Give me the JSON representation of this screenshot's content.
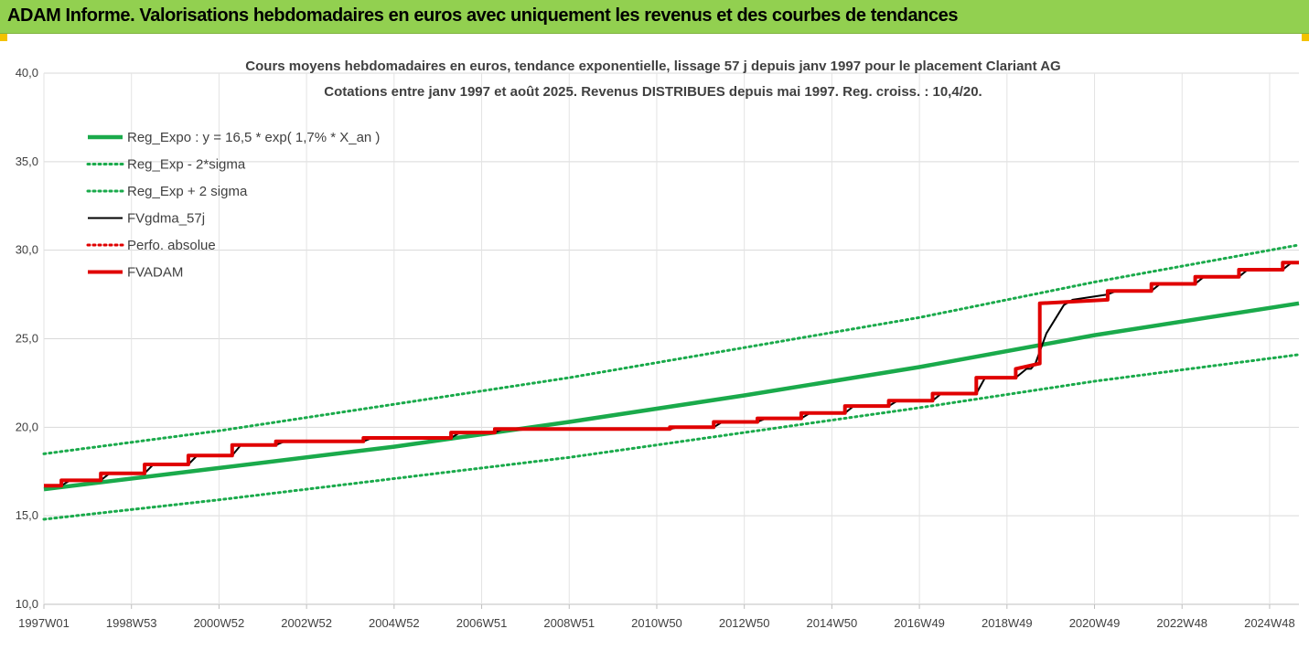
{
  "banner": {
    "title": "ADAM Informe. Valorisations hebdomadaires en euros avec uniquement les revenus et des courbes de tendances",
    "background": "#92d050"
  },
  "chart_data": {
    "type": "line",
    "title_line1": "Cours moyens hebdomadaires en euros, tendance exponentielle, lissage 57 j depuis janv 1997  pour le placement Clariant AG",
    "title_line2": "Cotations entre janv 1997 et août 2025.  Revenus DISTRIBUES depuis mai 1997. Reg. croiss. : 10,4/20.",
    "ylim": [
      10,
      40
    ],
    "yticks": [
      "10,0",
      "15,0",
      "20,0",
      "25,0",
      "30,0",
      "35,0",
      "40,0"
    ],
    "yticks_values": [
      10,
      15,
      20,
      25,
      30,
      35,
      40
    ],
    "xlim": [
      1997.0,
      2025.67
    ],
    "xticks": [
      "1997W01",
      "1998W53",
      "2000W52",
      "2002W52",
      "2004W52",
      "2006W51",
      "2008W51",
      "2010W50",
      "2012W50",
      "2014W50",
      "2016W49",
      "2018W49",
      "2020W49",
      "2022W48",
      "2024W48"
    ],
    "xticks_values": [
      1997.0,
      1999.0,
      2001.0,
      2003.0,
      2005.0,
      2007.0,
      2009.0,
      2011.0,
      2013.0,
      2015.0,
      2017.0,
      2019.0,
      2021.0,
      2023.0,
      2025.0
    ],
    "grid": true,
    "legend_position": "top-left",
    "series": [
      {
        "name": "Reg_Expo : y = 16,5 * exp( 1,7% *  X_an )",
        "color": "#1aaa4b",
        "style": "solid-thick",
        "x": [
          1997.0,
          2001.0,
          2005.0,
          2009.0,
          2013.0,
          2017.0,
          2021.0,
          2025.67
        ],
        "y": [
          16.5,
          17.7,
          18.9,
          20.3,
          21.8,
          23.4,
          25.2,
          27.0
        ]
      },
      {
        "name": "Reg_Exp - 2*sigma",
        "color": "#1aaa4b",
        "style": "dotted",
        "x": [
          1997.0,
          2001.0,
          2005.0,
          2009.0,
          2013.0,
          2017.0,
          2021.0,
          2025.67
        ],
        "y": [
          14.8,
          15.9,
          17.1,
          18.3,
          19.7,
          21.1,
          22.6,
          24.1
        ]
      },
      {
        "name": "Reg_Exp + 2 sigma",
        "color": "#1aaa4b",
        "style": "dotted",
        "x": [
          1997.0,
          2001.0,
          2005.0,
          2009.0,
          2013.0,
          2017.0,
          2021.0,
          2025.67
        ],
        "y": [
          18.5,
          19.8,
          21.3,
          22.8,
          24.5,
          26.2,
          28.2,
          30.3
        ]
      },
      {
        "name": "FVgdma_57j",
        "color": "#000000",
        "style": "solid",
        "x": [
          1997.0,
          1997.4,
          1997.6,
          1998.3,
          1998.5,
          1999.3,
          1999.5,
          2000.3,
          2000.5,
          2001.3,
          2001.5,
          2002.3,
          2002.5,
          2004.3,
          2004.5,
          2006.3,
          2006.5,
          2007.3,
          2007.5,
          2011.3,
          2011.5,
          2012.3,
          2012.5,
          2013.3,
          2013.5,
          2014.3,
          2014.5,
          2015.3,
          2015.5,
          2016.3,
          2016.5,
          2017.3,
          2017.5,
          2018.3,
          2018.5,
          2019.2,
          2019.45,
          2019.55,
          2019.65,
          2019.9,
          2020.3,
          2020.5,
          2021.3,
          2021.5,
          2022.3,
          2022.5,
          2023.3,
          2023.5,
          2024.3,
          2024.5,
          2025.3,
          2025.5,
          2025.67
        ],
        "y": [
          16.7,
          16.7,
          17.0,
          17.0,
          17.4,
          17.4,
          17.9,
          17.9,
          18.4,
          18.4,
          19.0,
          19.0,
          19.2,
          19.2,
          19.4,
          19.4,
          19.7,
          19.7,
          19.9,
          19.9,
          20.0,
          20.0,
          20.3,
          20.3,
          20.5,
          20.5,
          20.8,
          20.8,
          21.2,
          21.2,
          21.5,
          21.5,
          21.9,
          21.9,
          22.8,
          22.8,
          23.3,
          23.3,
          23.6,
          25.3,
          26.9,
          27.2,
          27.5,
          27.7,
          27.7,
          28.1,
          28.1,
          28.5,
          28.5,
          28.9,
          28.9,
          29.3,
          29.3
        ]
      },
      {
        "name": "Perfo. absolue",
        "color": "#e00000",
        "style": "dotted",
        "x": [],
        "y": []
      },
      {
        "name": "FVADAM",
        "color": "#e00000",
        "style": "step-thick",
        "x": [
          1997.0,
          1997.4,
          1997.4,
          1998.3,
          1998.3,
          1999.3,
          1999.3,
          2000.3,
          2000.3,
          2001.3,
          2001.3,
          2002.3,
          2002.3,
          2004.3,
          2004.3,
          2006.3,
          2006.3,
          2007.3,
          2007.3,
          2011.3,
          2011.3,
          2012.3,
          2012.3,
          2013.3,
          2013.3,
          2014.3,
          2014.3,
          2015.3,
          2015.3,
          2016.3,
          2016.3,
          2017.3,
          2017.3,
          2018.3,
          2018.3,
          2019.2,
          2019.2,
          2019.75,
          2019.75,
          2021.3,
          2021.3,
          2022.3,
          2022.3,
          2023.3,
          2023.3,
          2024.3,
          2024.3,
          2025.3,
          2025.3,
          2025.67
        ],
        "y": [
          16.7,
          16.7,
          17.0,
          17.0,
          17.4,
          17.4,
          17.9,
          17.9,
          18.4,
          18.4,
          19.0,
          19.0,
          19.2,
          19.2,
          19.4,
          19.4,
          19.7,
          19.7,
          19.9,
          19.9,
          20.0,
          20.0,
          20.3,
          20.3,
          20.5,
          20.5,
          20.8,
          20.8,
          21.2,
          21.2,
          21.5,
          21.5,
          21.9,
          21.9,
          22.8,
          22.8,
          23.3,
          23.6,
          27.0,
          27.2,
          27.7,
          27.7,
          28.1,
          28.1,
          28.5,
          28.5,
          28.9,
          28.9,
          29.3,
          29.3
        ]
      }
    ]
  }
}
